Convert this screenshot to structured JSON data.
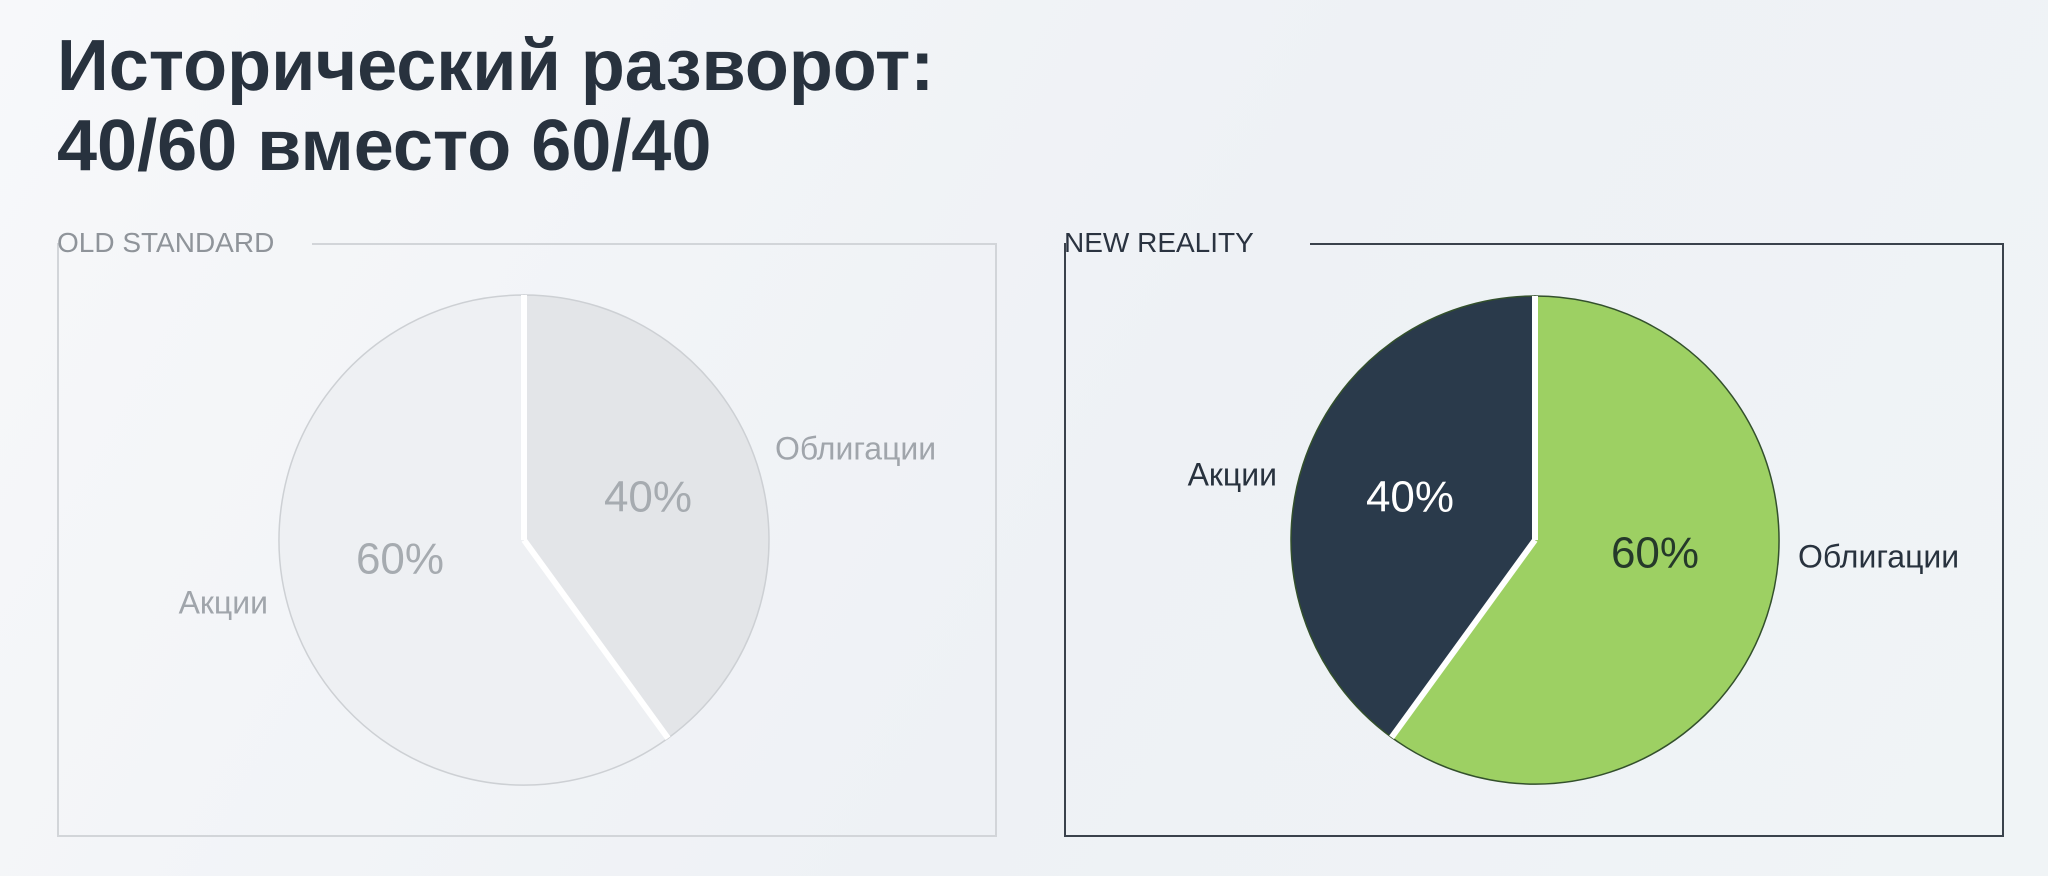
{
  "title": {
    "line1": "Исторический разворот:",
    "line2": "40/60 вместо 60/40"
  },
  "chart_data": [
    {
      "type": "pie",
      "title": "OLD STANDARD",
      "categories": [
        "Облигации",
        "Акции"
      ],
      "values": [
        40,
        60
      ],
      "data_labels": [
        "40%",
        "60%"
      ],
      "colors": [
        "#e3e5e8",
        "#eef0f3"
      ],
      "label_colors": [
        "#a6abb0",
        "#a6abb0"
      ],
      "category_label_color": "#a0a5ab",
      "stroke": "#cdd0d4"
    },
    {
      "type": "pie",
      "title": "NEW REALITY",
      "categories": [
        "Облигации",
        "Акции"
      ],
      "values": [
        60,
        40
      ],
      "data_labels": [
        "60%",
        "40%"
      ],
      "colors": [
        "#9dd063",
        "#2a3a4b"
      ],
      "label_colors": [
        "#25392a",
        "#ffffff"
      ],
      "category_label_color": "#28323e",
      "stroke": "#33502c"
    }
  ]
}
